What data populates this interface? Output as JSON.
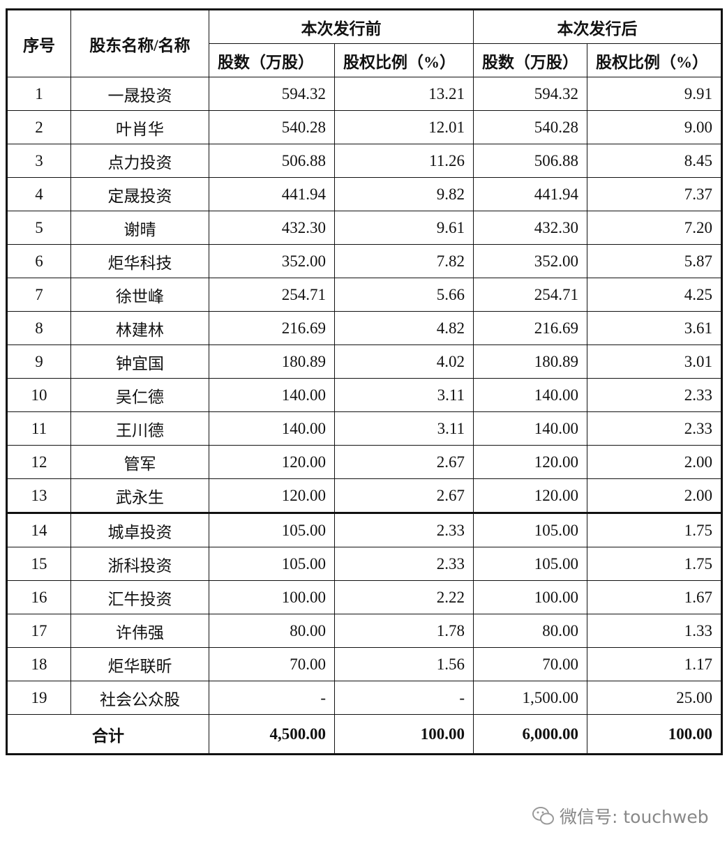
{
  "table": {
    "header": {
      "seq": "序号",
      "name": "股东名称/名称",
      "before": "本次发行前",
      "after": "本次发行后",
      "sub": [
        "股数（万股）",
        "股权比例（%）",
        "股数（万股）",
        "股权比例（%）"
      ]
    },
    "rows": [
      [
        "1",
        "一晟投资",
        "594.32",
        "13.21",
        "594.32",
        "9.91"
      ],
      [
        "2",
        "叶肖华",
        "540.28",
        "12.01",
        "540.28",
        "9.00"
      ],
      [
        "3",
        "点力投资",
        "506.88",
        "11.26",
        "506.88",
        "8.45"
      ],
      [
        "4",
        "定晟投资",
        "441.94",
        "9.82",
        "441.94",
        "7.37"
      ],
      [
        "5",
        "谢晴",
        "432.30",
        "9.61",
        "432.30",
        "7.20"
      ],
      [
        "6",
        "炬华科技",
        "352.00",
        "7.82",
        "352.00",
        "5.87"
      ],
      [
        "7",
        "徐世峰",
        "254.71",
        "5.66",
        "254.71",
        "4.25"
      ],
      [
        "8",
        "林建林",
        "216.69",
        "4.82",
        "216.69",
        "3.61"
      ],
      [
        "9",
        "钟宜国",
        "180.89",
        "4.02",
        "180.89",
        "3.01"
      ],
      [
        "10",
        "吴仁德",
        "140.00",
        "3.11",
        "140.00",
        "2.33"
      ],
      [
        "11",
        "王川德",
        "140.00",
        "3.11",
        "140.00",
        "2.33"
      ],
      [
        "12",
        "管军",
        "120.00",
        "2.67",
        "120.00",
        "2.00"
      ],
      [
        "13",
        "武永生",
        "120.00",
        "2.67",
        "120.00",
        "2.00"
      ],
      [
        "14",
        "城卓投资",
        "105.00",
        "2.33",
        "105.00",
        "1.75"
      ],
      [
        "15",
        "浙科投资",
        "105.00",
        "2.33",
        "105.00",
        "1.75"
      ],
      [
        "16",
        "汇牛投资",
        "100.00",
        "2.22",
        "100.00",
        "1.67"
      ],
      [
        "17",
        "许伟强",
        "80.00",
        "1.78",
        "80.00",
        "1.33"
      ],
      [
        "18",
        "炬华联昕",
        "70.00",
        "1.56",
        "70.00",
        "1.17"
      ],
      [
        "19",
        "社会公众股",
        "-",
        "-",
        "1,500.00",
        "25.00"
      ]
    ],
    "total": [
      "合计",
      "4,500.00",
      "100.00",
      "6,000.00",
      "100.00"
    ]
  },
  "watermark": "微信号: touchweb"
}
